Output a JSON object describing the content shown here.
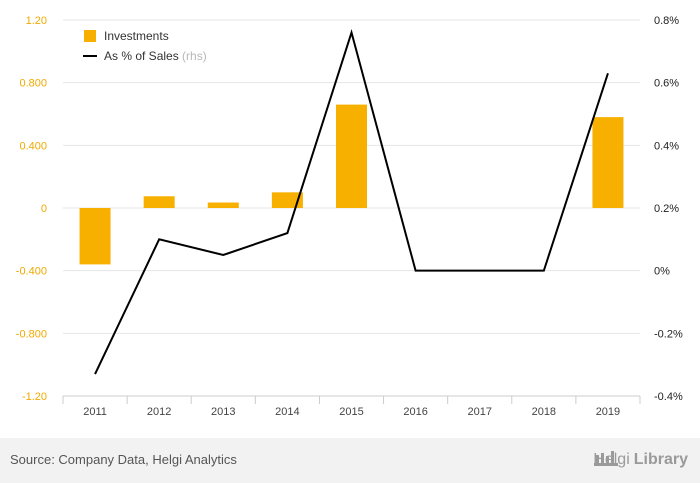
{
  "chart_data": {
    "type": "bar+line",
    "categories": [
      "2011",
      "2012",
      "2013",
      "2014",
      "2015",
      "2016",
      "2017",
      "2018",
      "2019"
    ],
    "series": [
      {
        "name": "Investments",
        "type": "bar",
        "axis": "left",
        "color": "#f7b000",
        "values": [
          -0.36,
          0.075,
          0.035,
          0.1,
          0.66,
          null,
          null,
          null,
          0.58
        ]
      },
      {
        "name": "As % of Sales",
        "name_suffix": "(rhs)",
        "type": "line",
        "axis": "right",
        "color": "#000000",
        "values": [
          -0.33,
          0.1,
          0.05,
          0.12,
          0.76,
          0.0,
          0.0,
          0.0,
          0.63
        ]
      }
    ],
    "y_left": {
      "ticks": [
        1.2,
        0.8,
        0.4,
        0,
        -0.4,
        -0.8,
        -1.2
      ],
      "tick_labels": [
        "1.20",
        "0.800",
        "0.400",
        "0",
        "-0.400",
        "-0.800",
        "-1.20"
      ],
      "ylim": [
        -1.2,
        1.2
      ],
      "tick_color": "#f2a900"
    },
    "y_right": {
      "ticks": [
        0.8,
        0.6,
        0.4,
        0.2,
        0.0,
        -0.2,
        -0.4
      ],
      "tick_labels": [
        "0.8%",
        "0.6%",
        "0.4%",
        "0.2%",
        "0%",
        "-0.2%",
        "-0.4%"
      ],
      "ylim": [
        -0.4,
        0.8
      ]
    },
    "legend": "top-left",
    "grid": "horizontal"
  },
  "footer": {
    "source": "Source: Company Data, Helgi Analytics",
    "brand_light": "Helgi",
    "brand_bold": "Library"
  }
}
